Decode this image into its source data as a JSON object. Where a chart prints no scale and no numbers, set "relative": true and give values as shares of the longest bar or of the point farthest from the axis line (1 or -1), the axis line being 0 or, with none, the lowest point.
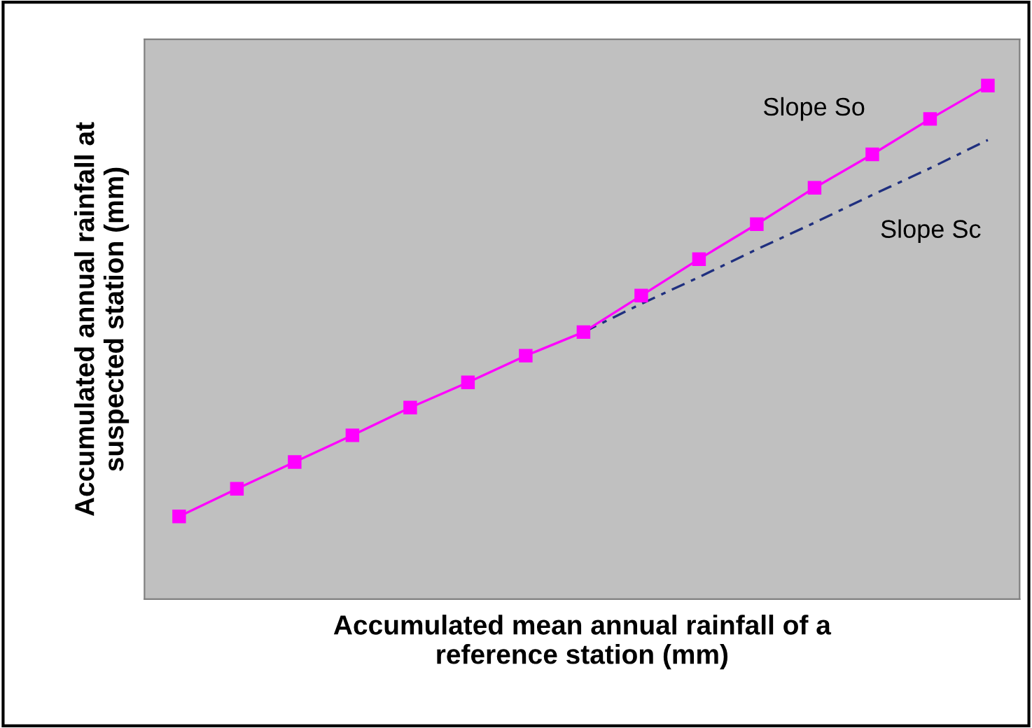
{
  "chart_data": {
    "type": "line",
    "relative": true,
    "xlabel": "Accumulated mean annual rainfall of a\nreference station (mm)",
    "ylabel": "Accumulated annual rainfall at\nsuspected station (mm)",
    "categories": [
      null,
      null,
      null,
      null,
      null,
      null,
      null,
      null,
      null,
      null,
      null,
      null,
      null,
      null,
      null
    ],
    "series": [
      {
        "name": "Slope So",
        "color": "#ff00ff",
        "marker": "square",
        "line_style": "solid",
        "values": [
          0.161,
          0.215,
          0.267,
          0.319,
          0.373,
          0.422,
          0.474,
          0.52,
          0.591,
          0.662,
          0.73,
          0.801,
          0.866,
          0.935,
          1.0
        ]
      },
      {
        "name": "Slope Sc",
        "color": "#1f2f7f",
        "marker": "none",
        "line_style": "dashed",
        "values": [
          null,
          null,
          null,
          null,
          null,
          null,
          null,
          0.52,
          0.575,
          0.627,
          0.681,
          0.733,
          0.787,
          0.839,
          0.894
        ]
      }
    ],
    "legend": false
  }
}
